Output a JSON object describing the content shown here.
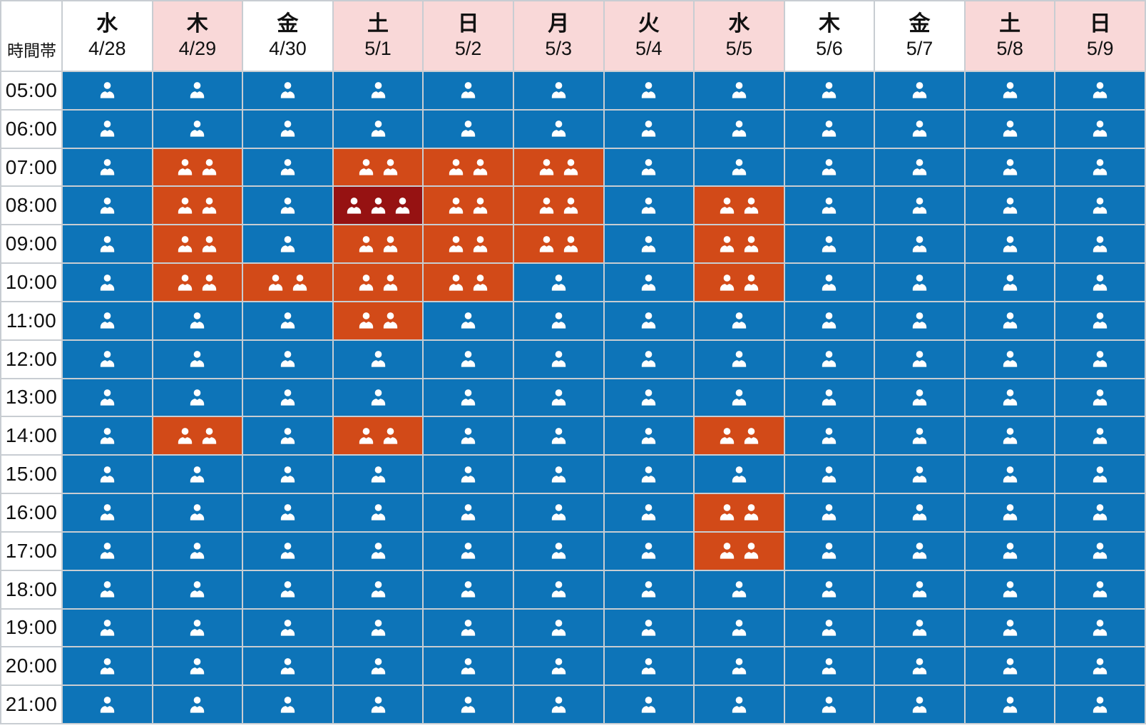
{
  "table": {
    "corner_label": "時間帯",
    "columns": [
      {
        "day": "水",
        "date": "4/28",
        "holiday": false
      },
      {
        "day": "木",
        "date": "4/29",
        "holiday": true
      },
      {
        "day": "金",
        "date": "4/30",
        "holiday": false
      },
      {
        "day": "土",
        "date": "5/1",
        "holiday": true
      },
      {
        "day": "日",
        "date": "5/2",
        "holiday": true
      },
      {
        "day": "月",
        "date": "5/3",
        "holiday": true
      },
      {
        "day": "火",
        "date": "5/4",
        "holiday": true
      },
      {
        "day": "水",
        "date": "5/5",
        "holiday": true
      },
      {
        "day": "木",
        "date": "5/6",
        "holiday": false
      },
      {
        "day": "金",
        "date": "5/7",
        "holiday": false
      },
      {
        "day": "土",
        "date": "5/8",
        "holiday": true
      },
      {
        "day": "日",
        "date": "5/9",
        "holiday": true
      }
    ],
    "times": [
      "05:00",
      "06:00",
      "07:00",
      "08:00",
      "09:00",
      "10:00",
      "11:00",
      "12:00",
      "13:00",
      "14:00",
      "15:00",
      "16:00",
      "17:00",
      "18:00",
      "19:00",
      "20:00",
      "21:00"
    ]
  },
  "colors": {
    "level1_bg": "#0d74b8",
    "level2_bg": "#d24a18",
    "level3_bg": "#961212",
    "holiday_header_bg": "#f9d8d8",
    "weekday_header_bg": "#ffffff",
    "grid_line": "#c8cdd2",
    "icon": "#ffffff",
    "text": "#111111"
  },
  "icons": {
    "cell_icon": "person-icon"
  },
  "chart_data": {
    "type": "heatmap",
    "title": "",
    "xlabel": "",
    "ylabel": "時間帯",
    "x": [
      "水 4/28",
      "木 4/29",
      "金 4/30",
      "土 5/1",
      "日 5/2",
      "月 5/3",
      "火 5/4",
      "水 5/5",
      "木 5/6",
      "金 5/7",
      "土 5/8",
      "日 5/9"
    ],
    "y": [
      "05:00",
      "06:00",
      "07:00",
      "08:00",
      "09:00",
      "10:00",
      "11:00",
      "12:00",
      "13:00",
      "14:00",
      "15:00",
      "16:00",
      "17:00",
      "18:00",
      "19:00",
      "20:00",
      "21:00"
    ],
    "values": [
      [
        1,
        1,
        1,
        1,
        1,
        1,
        1,
        1,
        1,
        1,
        1,
        1
      ],
      [
        1,
        1,
        1,
        1,
        1,
        1,
        1,
        1,
        1,
        1,
        1,
        1
      ],
      [
        1,
        2,
        1,
        2,
        2,
        2,
        1,
        1,
        1,
        1,
        1,
        1
      ],
      [
        1,
        2,
        1,
        3,
        2,
        2,
        1,
        2,
        1,
        1,
        1,
        1
      ],
      [
        1,
        2,
        1,
        2,
        2,
        2,
        1,
        2,
        1,
        1,
        1,
        1
      ],
      [
        1,
        2,
        2,
        2,
        2,
        1,
        1,
        2,
        1,
        1,
        1,
        1
      ],
      [
        1,
        1,
        1,
        2,
        1,
        1,
        1,
        1,
        1,
        1,
        1,
        1
      ],
      [
        1,
        1,
        1,
        1,
        1,
        1,
        1,
        1,
        1,
        1,
        1,
        1
      ],
      [
        1,
        1,
        1,
        1,
        1,
        1,
        1,
        1,
        1,
        1,
        1,
        1
      ],
      [
        1,
        2,
        1,
        2,
        1,
        1,
        1,
        2,
        1,
        1,
        1,
        1
      ],
      [
        1,
        1,
        1,
        1,
        1,
        1,
        1,
        1,
        1,
        1,
        1,
        1
      ],
      [
        1,
        1,
        1,
        1,
        1,
        1,
        1,
        2,
        1,
        1,
        1,
        1
      ],
      [
        1,
        1,
        1,
        1,
        1,
        1,
        1,
        2,
        1,
        1,
        1,
        1
      ],
      [
        1,
        1,
        1,
        1,
        1,
        1,
        1,
        1,
        1,
        1,
        1,
        1
      ],
      [
        1,
        1,
        1,
        1,
        1,
        1,
        1,
        1,
        1,
        1,
        1,
        1
      ],
      [
        1,
        1,
        1,
        1,
        1,
        1,
        1,
        1,
        1,
        1,
        1,
        1
      ],
      [
        1,
        1,
        1,
        1,
        1,
        1,
        1,
        1,
        1,
        1,
        1,
        1
      ]
    ],
    "value_scale": {
      "1": "low congestion (1 person icon, blue)",
      "2": "medium congestion (2 person icons, orange)",
      "3": "high congestion (3 person icons, dark red)"
    },
    "legend": "none",
    "grid": true
  }
}
